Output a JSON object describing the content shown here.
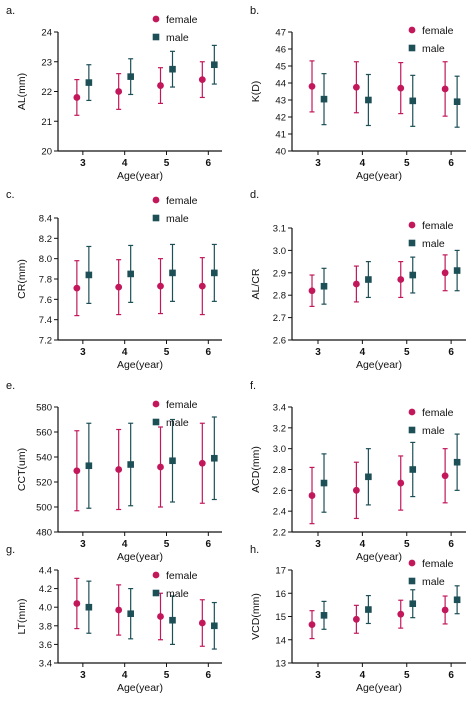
{
  "colors": {
    "female": "#c2185b",
    "male": "#1d4f57",
    "axis": "#111111"
  },
  "chart_data": [
    {
      "type": "scatter",
      "panel_label": "a.",
      "xlabel": "Age(year)",
      "ylabel": "AL(mm)",
      "categories": [
        "3",
        "4",
        "5",
        "6"
      ],
      "ylim": [
        20,
        24
      ],
      "yticks": [
        20,
        21,
        22,
        23,
        24
      ],
      "ytick_labels": [
        "20",
        "21",
        "22",
        "23",
        "24"
      ],
      "legend": "top-right",
      "series": [
        {
          "name": "female",
          "marker": "circle",
          "values": [
            21.8,
            22.0,
            22.2,
            22.4
          ],
          "err": [
            0.6,
            0.6,
            0.6,
            0.6
          ]
        },
        {
          "name": "male",
          "marker": "square",
          "values": [
            22.3,
            22.5,
            22.75,
            22.9
          ],
          "err": [
            0.6,
            0.6,
            0.6,
            0.65
          ]
        }
      ]
    },
    {
      "type": "scatter",
      "panel_label": "b.",
      "xlabel": "Age(year)",
      "ylabel": "K(D)",
      "categories": [
        "3",
        "4",
        "5",
        "6"
      ],
      "ylim": [
        40,
        47
      ],
      "yticks": [
        40,
        41,
        42,
        43,
        44,
        45,
        46,
        47
      ],
      "ytick_labels": [
        "40",
        "41",
        "42",
        "43",
        "44",
        "45",
        "46",
        "47"
      ],
      "legend": "top-right",
      "series": [
        {
          "name": "female",
          "marker": "circle",
          "values": [
            43.8,
            43.75,
            43.7,
            43.65
          ],
          "err": [
            1.5,
            1.5,
            1.5,
            1.6
          ]
        },
        {
          "name": "male",
          "marker": "square",
          "values": [
            43.05,
            43.0,
            42.95,
            42.9
          ],
          "err": [
            1.5,
            1.5,
            1.5,
            1.5
          ]
        }
      ]
    },
    {
      "type": "scatter",
      "panel_label": "c.",
      "xlabel": "Age(year)",
      "ylabel": "CR(mm)",
      "categories": [
        "3",
        "4",
        "5",
        "6"
      ],
      "ylim": [
        7.2,
        8.4
      ],
      "yticks": [
        7.2,
        7.4,
        7.6,
        7.8,
        8.0,
        8.2,
        8.4
      ],
      "ytick_labels": [
        "7.2",
        "7.4",
        "7.6",
        "7.8",
        "8.0",
        "8.2",
        "8.4"
      ],
      "legend": "top-right",
      "series": [
        {
          "name": "female",
          "marker": "circle",
          "values": [
            7.71,
            7.72,
            7.73,
            7.73
          ],
          "err": [
            0.27,
            0.27,
            0.27,
            0.28
          ]
        },
        {
          "name": "male",
          "marker": "square",
          "values": [
            7.84,
            7.85,
            7.86,
            7.86
          ],
          "err": [
            0.28,
            0.28,
            0.28,
            0.28
          ]
        }
      ]
    },
    {
      "type": "scatter",
      "panel_label": "d.",
      "xlabel": "Age(year)",
      "ylabel": "AL/CR",
      "categories": [
        "3",
        "4",
        "5",
        "6"
      ],
      "ylim": [
        2.6,
        3.1
      ],
      "yticks": [
        2.6,
        2.7,
        2.8,
        2.9,
        3.0,
        3.1
      ],
      "ytick_labels": [
        "2.6",
        "2.7",
        "2.8",
        "2.9",
        "3.0",
        "3.1"
      ],
      "legend": "top-right",
      "series": [
        {
          "name": "female",
          "marker": "circle",
          "values": [
            2.82,
            2.85,
            2.87,
            2.9
          ],
          "err": [
            0.07,
            0.08,
            0.08,
            0.08
          ]
        },
        {
          "name": "male",
          "marker": "square",
          "values": [
            2.84,
            2.87,
            2.89,
            2.91
          ],
          "err": [
            0.08,
            0.08,
            0.08,
            0.09
          ]
        }
      ]
    },
    {
      "type": "scatter",
      "panel_label": "e.",
      "xlabel": "Age(year)",
      "ylabel": "CCT(um)",
      "categories": [
        "3",
        "4",
        "5",
        "6"
      ],
      "ylim": [
        480,
        580
      ],
      "yticks": [
        480,
        500,
        520,
        540,
        560,
        580
      ],
      "ytick_labels": [
        "480",
        "500",
        "520",
        "540",
        "560",
        "580"
      ],
      "legend": "top-right",
      "series": [
        {
          "name": "female",
          "marker": "circle",
          "values": [
            529,
            530,
            532,
            535
          ],
          "err": [
            32,
            32,
            32,
            32
          ]
        },
        {
          "name": "male",
          "marker": "square",
          "values": [
            533,
            534,
            537,
            539
          ],
          "err": [
            34,
            33,
            33,
            33
          ]
        }
      ]
    },
    {
      "type": "scatter",
      "panel_label": "f.",
      "xlabel": "Age(year)",
      "ylabel": "ACD(mm)",
      "categories": [
        "3",
        "4",
        "5",
        "6"
      ],
      "ylim": [
        2.2,
        3.4
      ],
      "yticks": [
        2.2,
        2.4,
        2.6,
        2.8,
        3.0,
        3.2,
        3.4
      ],
      "ytick_labels": [
        "2.2",
        "2.4",
        "2.6",
        "2.8",
        "3.0",
        "3.2",
        "3.4"
      ],
      "legend": "top-right",
      "series": [
        {
          "name": "female",
          "marker": "circle",
          "values": [
            2.55,
            2.6,
            2.67,
            2.74
          ],
          "err": [
            0.27,
            0.27,
            0.26,
            0.26
          ]
        },
        {
          "name": "male",
          "marker": "square",
          "values": [
            2.67,
            2.73,
            2.8,
            2.87
          ],
          "err": [
            0.28,
            0.27,
            0.26,
            0.27
          ]
        }
      ]
    },
    {
      "type": "scatter",
      "panel_label": "g.",
      "xlabel": "Age(year)",
      "ylabel": "LT(mm)",
      "categories": [
        "3",
        "4",
        "5",
        "6"
      ],
      "ylim": [
        3.4,
        4.4
      ],
      "yticks": [
        3.4,
        3.6,
        3.8,
        4.0,
        4.2,
        4.4
      ],
      "ytick_labels": [
        "3.4",
        "3.6",
        "3.8",
        "4.0",
        "4.2",
        "4.4"
      ],
      "legend": "top-right",
      "series": [
        {
          "name": "female",
          "marker": "circle",
          "values": [
            4.04,
            3.97,
            3.9,
            3.83
          ],
          "err": [
            0.27,
            0.27,
            0.25,
            0.25
          ]
        },
        {
          "name": "male",
          "marker": "square",
          "values": [
            4.0,
            3.93,
            3.86,
            3.8
          ],
          "err": [
            0.28,
            0.27,
            0.26,
            0.25
          ]
        }
      ]
    },
    {
      "type": "scatter",
      "panel_label": "h.",
      "xlabel": "Age(year)",
      "ylabel": "VCD(mm)",
      "categories": [
        "3",
        "4",
        "5",
        "6"
      ],
      "ylim": [
        13,
        17
      ],
      "yticks": [
        13,
        14,
        15,
        16,
        17
      ],
      "ytick_labels": [
        "13",
        "14",
        "15",
        "16",
        "17"
      ],
      "legend": "top-right",
      "series": [
        {
          "name": "female",
          "marker": "circle",
          "values": [
            14.65,
            14.88,
            15.1,
            15.28
          ],
          "err": [
            0.6,
            0.6,
            0.6,
            0.6
          ]
        },
        {
          "name": "male",
          "marker": "square",
          "values": [
            15.05,
            15.3,
            15.55,
            15.72
          ],
          "err": [
            0.6,
            0.6,
            0.6,
            0.6
          ]
        }
      ]
    }
  ]
}
